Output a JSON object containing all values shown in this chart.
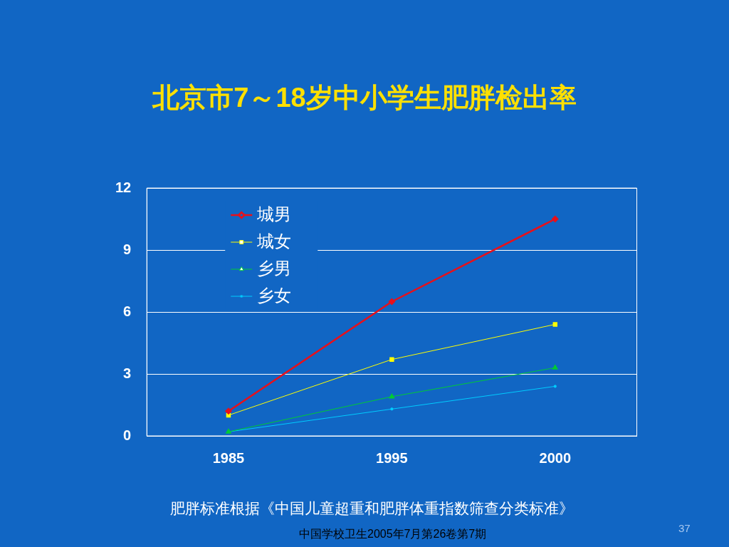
{
  "chart_data": {
    "type": "line",
    "title": "北京市7～18岁中小学生肥胖检出率",
    "categories": [
      "1985",
      "1995",
      "2000"
    ],
    "series": [
      {
        "name": "城男",
        "color": "#e8101a",
        "values": [
          1.2,
          6.5,
          10.5
        ],
        "marker": "diamond"
      },
      {
        "name": "城女",
        "color": "#ffff00",
        "values": [
          1.0,
          3.7,
          5.4
        ],
        "marker": "square"
      },
      {
        "name": "乡男",
        "color": "#00cc33",
        "values": [
          0.2,
          1.9,
          3.3
        ],
        "marker": "triangle"
      },
      {
        "name": "乡女",
        "color": "#00ccff",
        "values": [
          0.2,
          1.3,
          2.4
        ],
        "marker": "cross"
      }
    ],
    "ylim": [
      0,
      12
    ],
    "yticks": [
      0,
      3,
      6,
      9,
      12
    ],
    "grid": "y",
    "legend": "top left",
    "line_style": "solid",
    "annotations": [
      "肥胖标准根据《中国儿童超重和肥胖体重指数筛查分类标准》",
      "中国学校卫生2005年7月第26卷第7期",
      "37"
    ]
  }
}
